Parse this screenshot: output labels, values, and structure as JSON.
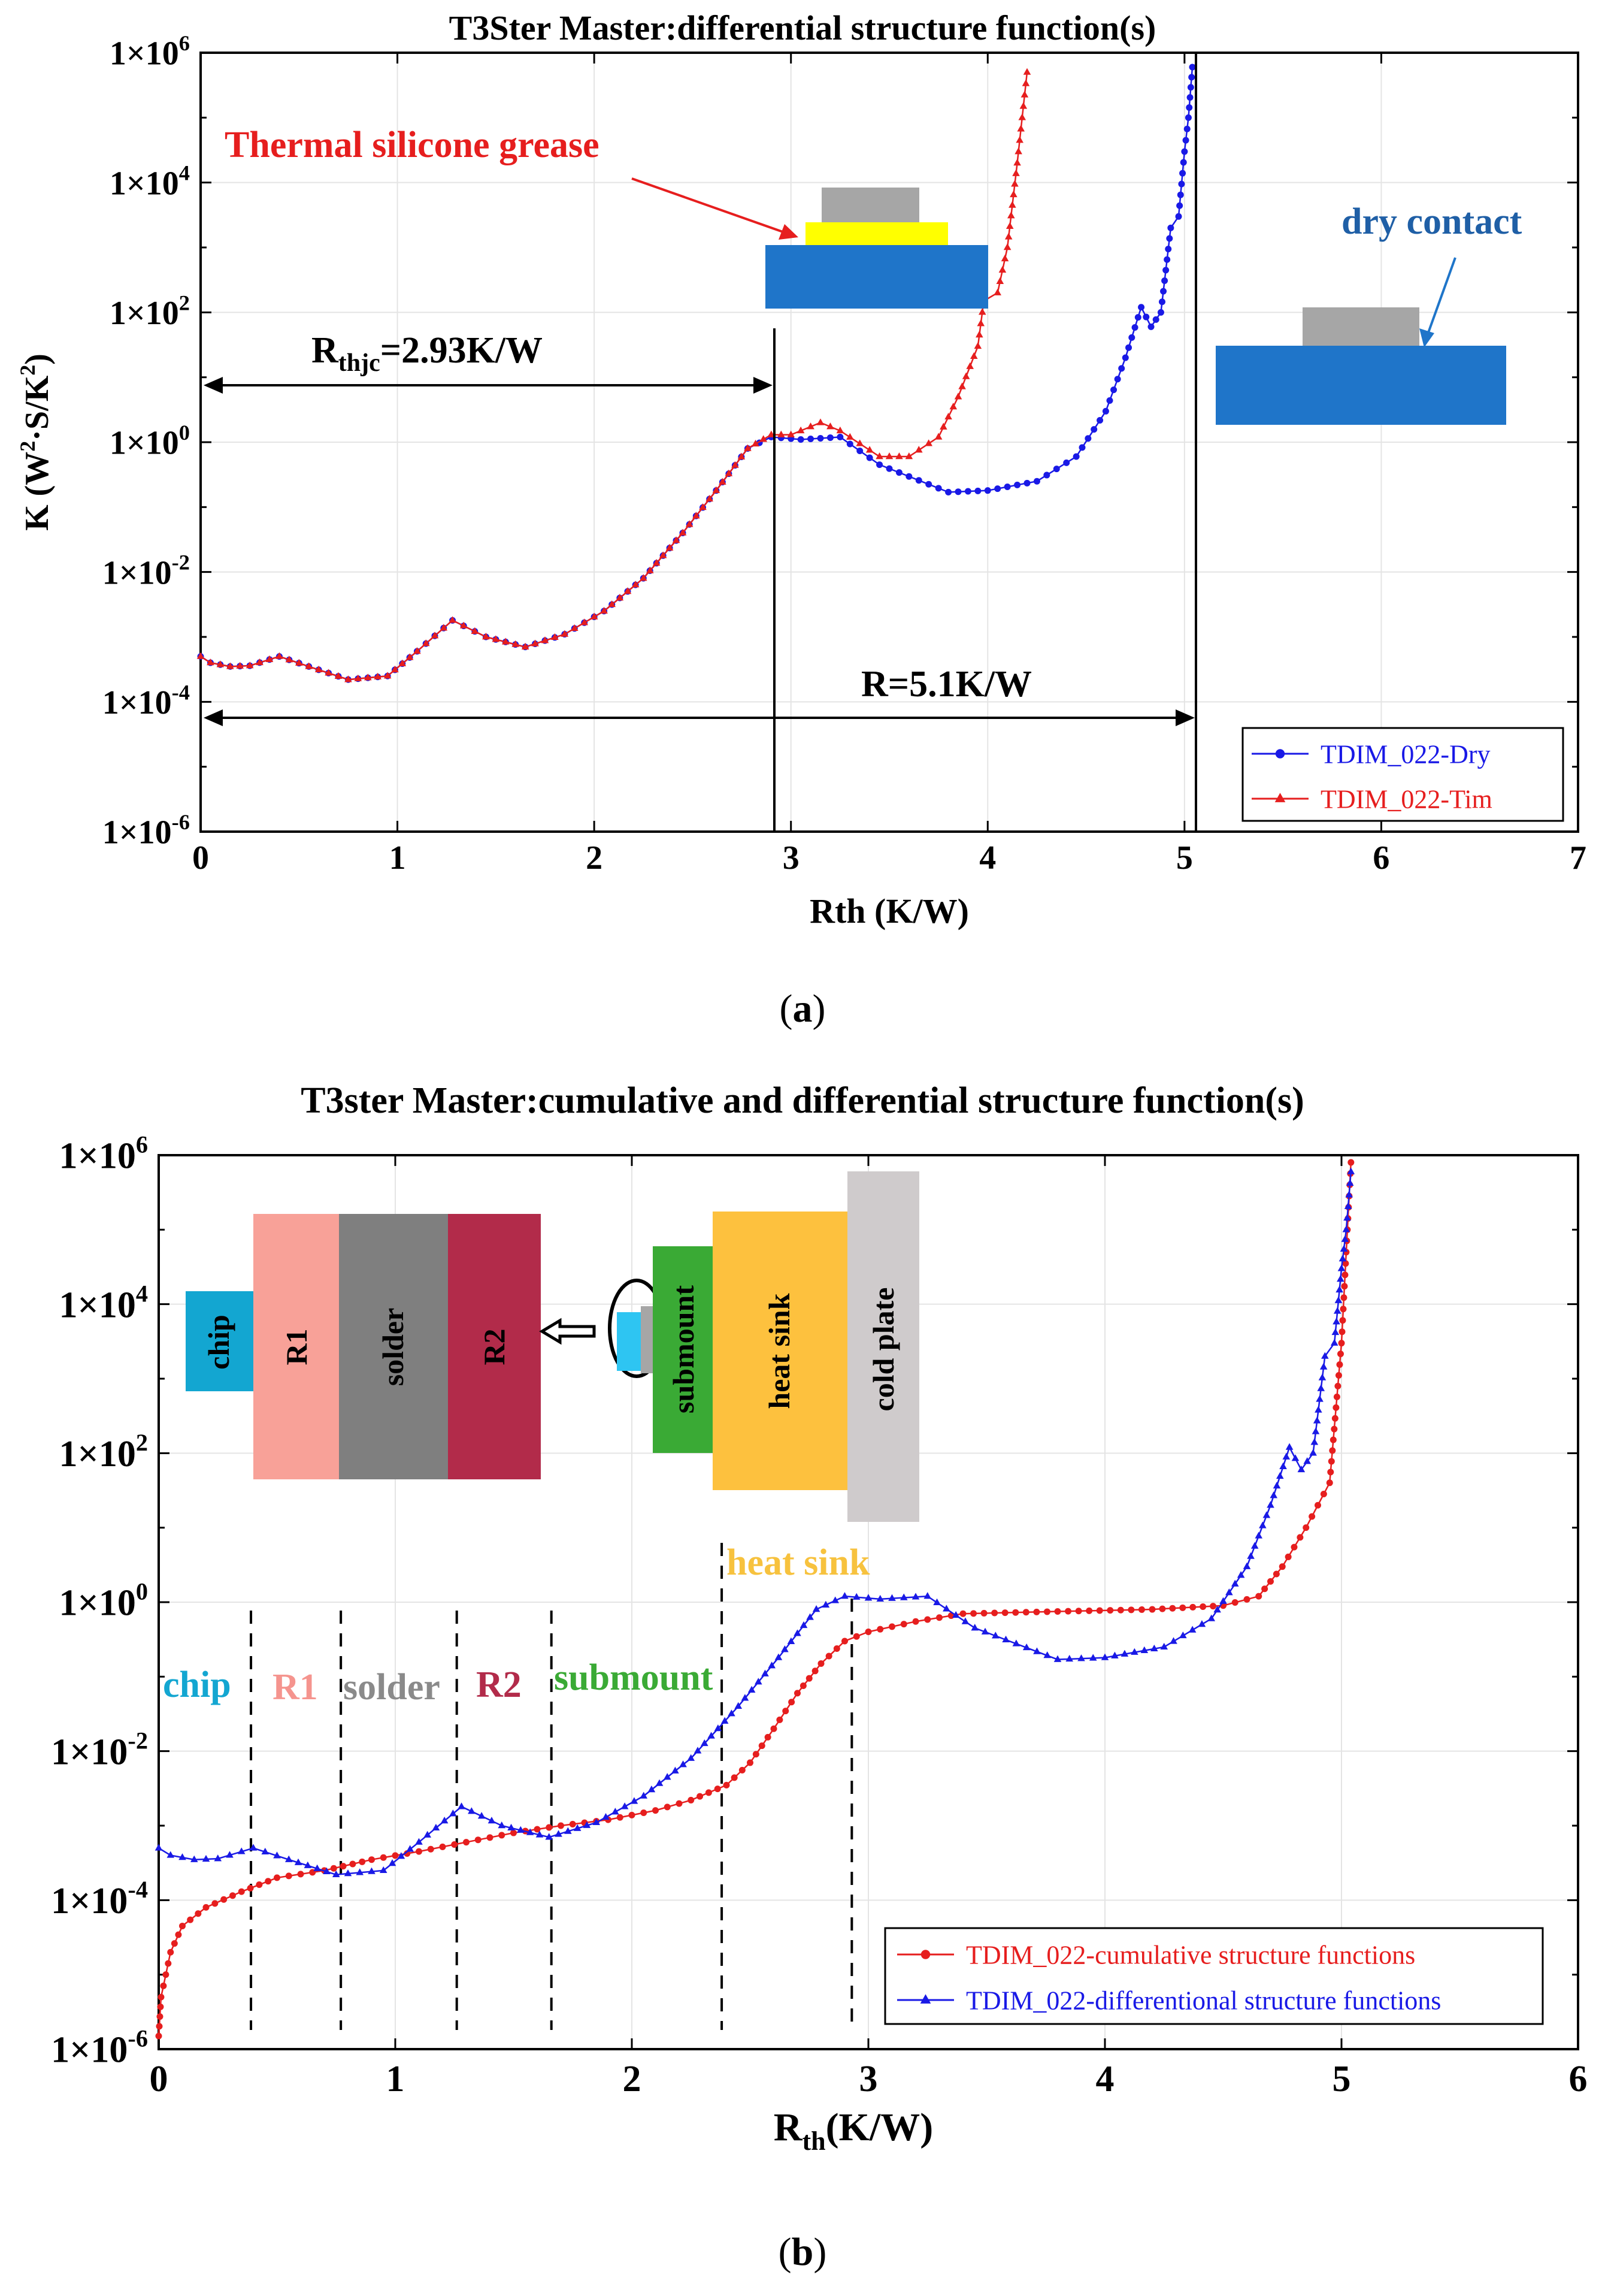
{
  "colors": {
    "blue": "#1919e6",
    "red": "#e61e1e",
    "blue_dark": "#1f5fa6",
    "dark": "#000000"
  },
  "chart_data": [
    {
      "type": "line",
      "title": "T3Ster Master:differential structure function(s)",
      "xlabel": "Rth (K/W)",
      "ylabel_main": "K (W",
      "ylabel_sup1": "2",
      "ylabel_mid": "·S/K",
      "ylabel_sup2": "2",
      "ylabel_end": ")",
      "xlim": [
        0,
        7
      ],
      "ylim": [
        1e-06,
        1000000.0
      ],
      "yscale": "log",
      "xticks": [
        0,
        1,
        2,
        3,
        4,
        5,
        6,
        7
      ],
      "xtick_labels": [
        "0",
        "1",
        "2",
        "3",
        "4",
        "5",
        "6",
        "7"
      ],
      "ytick_labels": [
        {
          "base": "1×10",
          "exp": "6"
        },
        {
          "base": "1×10",
          "exp": "4"
        },
        {
          "base": "1×10",
          "exp": "2"
        },
        {
          "base": "1×10",
          "exp": "0"
        },
        {
          "base": "1×10",
          "exp": "-2"
        },
        {
          "base": "1×10",
          "exp": "-4"
        },
        {
          "base": "1×10",
          "exp": "-6"
        }
      ],
      "legend_position": "bottom-right",
      "series": [
        {
          "name": "TDIM_022-Dry",
          "color": "#1919e6",
          "marker": "circle",
          "x": [
            0,
            0.05,
            0.15,
            0.25,
            0.4,
            0.55,
            0.75,
            0.95,
            1.1,
            1.28,
            1.45,
            1.65,
            1.85,
            2.05,
            2.25,
            2.45,
            2.62,
            2.78,
            2.9,
            3.05,
            3.25,
            3.45,
            3.8,
            4.0,
            4.25,
            4.45,
            4.6,
            4.7,
            4.78,
            4.83,
            4.88,
            4.93,
            4.97,
            5.0,
            5.02,
            5.04
          ],
          "y": [
            0.0005,
            0.0004,
            0.00035,
            0.00036,
            0.0005,
            0.00035,
            0.00022,
            0.00025,
            0.0006,
            0.0018,
            0.001,
            0.0007,
            0.0011,
            0.0025,
            0.008,
            0.04,
            0.18,
            0.8,
            1.2,
            1.1,
            1.2,
            0.45,
            0.17,
            0.18,
            0.25,
            0.6,
            3,
            20,
            120,
            60,
            100,
            2000,
            3000,
            30000,
            100000,
            600000
          ]
        },
        {
          "name": "TDIM_022-Tim",
          "color": "#e61e1e",
          "marker": "triangle",
          "x": [
            0,
            0.05,
            0.15,
            0.25,
            0.4,
            0.55,
            0.75,
            0.95,
            1.1,
            1.28,
            1.45,
            1.65,
            1.85,
            2.05,
            2.25,
            2.45,
            2.62,
            2.78,
            2.9,
            3.0,
            3.15,
            3.25,
            3.45,
            3.6,
            3.75,
            3.85,
            3.95,
            3.98,
            4.05,
            4.1,
            4.15,
            4.2
          ],
          "y": [
            0.0005,
            0.0004,
            0.00035,
            0.00036,
            0.0005,
            0.00035,
            0.00022,
            0.00025,
            0.0006,
            0.0018,
            0.001,
            0.0007,
            0.0011,
            0.0025,
            0.008,
            0.04,
            0.18,
            0.8,
            1.3,
            1.3,
            2,
            1.5,
            0.6,
            0.6,
            1.2,
            5,
            30,
            150,
            200,
            1000,
            20000,
            500000
          ]
        }
      ],
      "annotations": {
        "rthjc_main": "R",
        "rthjc_sub": "thjc",
        "rthjc_rest": "=2.93K/W",
        "r_total": "R=5.1K/W",
        "grease": "Thermal silicone grease",
        "dry": "dry contact"
      },
      "caption_open": "(",
      "caption_letter": "a",
      "caption_close": ")"
    },
    {
      "type": "line",
      "title": "T3ster Master:cumulative and differential structure function(s)",
      "xlabel_main": "R",
      "xlabel_sub": "th",
      "xlabel_rest": "(K/W)",
      "xlim": [
        0,
        6
      ],
      "ylim": [
        1e-06,
        1000000.0
      ],
      "yscale": "log",
      "xticks": [
        0,
        1,
        2,
        3,
        4,
        5,
        6
      ],
      "xtick_labels": [
        "0",
        "1",
        "2",
        "3",
        "4",
        "5",
        "6"
      ],
      "ytick_labels": [
        {
          "base": "1×10",
          "exp": "6"
        },
        {
          "base": "1×10",
          "exp": "4"
        },
        {
          "base": "1×10",
          "exp": "2"
        },
        {
          "base": "1×10",
          "exp": "0"
        },
        {
          "base": "1×10",
          "exp": "-2"
        },
        {
          "base": "1×10",
          "exp": "-4"
        },
        {
          "base": "1×10",
          "exp": "-6"
        }
      ],
      "legend_position": "bottom-right",
      "series": [
        {
          "name": "TDIM_022-cumulative structure functions",
          "color": "#e61e1e",
          "marker": "circle",
          "x": [
            0,
            0.01,
            0.05,
            0.1,
            0.2,
            0.35,
            0.5,
            0.7,
            0.9,
            1.1,
            1.3,
            1.5,
            1.7,
            1.9,
            2.1,
            2.25,
            2.4,
            2.5,
            2.6,
            2.7,
            2.8,
            2.9,
            3.0,
            3.2,
            3.4,
            3.8,
            4.2,
            4.5,
            4.65,
            4.75,
            4.85,
            4.9,
            4.95,
            5.0,
            5.02,
            5.04
          ],
          "y": [
            1.5e-06,
            5e-06,
            2e-05,
            4.5e-05,
            8e-05,
            0.00013,
            0.0002,
            0.00025,
            0.00035,
            0.00045,
            0.0006,
            0.0008,
            0.001,
            0.0012,
            0.0016,
            0.0022,
            0.0035,
            0.007,
            0.02,
            0.06,
            0.15,
            0.3,
            0.4,
            0.55,
            0.7,
            0.75,
            0.8,
            0.9,
            1.2,
            3,
            10,
            20,
            40,
            3000,
            50000,
            800000
          ]
        },
        {
          "name": "TDIM_022-differentional structure functions",
          "color": "#1919e6",
          "marker": "triangle",
          "x": [
            0,
            0.05,
            0.15,
            0.25,
            0.4,
            0.55,
            0.75,
            0.95,
            1.1,
            1.28,
            1.45,
            1.65,
            1.85,
            2.05,
            2.25,
            2.45,
            2.62,
            2.78,
            2.9,
            3.05,
            3.25,
            3.45,
            3.8,
            4.0,
            4.25,
            4.45,
            4.6,
            4.7,
            4.78,
            4.83,
            4.88,
            4.93,
            4.97,
            5.0,
            5.02,
            5.04
          ],
          "y": [
            0.0005,
            0.0004,
            0.00035,
            0.00036,
            0.0005,
            0.00035,
            0.00022,
            0.00025,
            0.0006,
            0.0018,
            0.001,
            0.0007,
            0.0011,
            0.0025,
            0.008,
            0.04,
            0.18,
            0.8,
            1.2,
            1.1,
            1.2,
            0.45,
            0.17,
            0.18,
            0.25,
            0.6,
            3,
            20,
            120,
            60,
            100,
            2000,
            3000,
            30000,
            100000,
            600000
          ]
        }
      ],
      "dashed_x": [
        0.39,
        0.77,
        1.26,
        1.66,
        2.38,
        2.93
      ],
      "region_labels": [
        {
          "text": "chip",
          "color": "#13a6d1"
        },
        {
          "text": "R1",
          "color": "#f5948e"
        },
        {
          "text": "solder",
          "color": "#8a8a8a"
        },
        {
          "text": "R2",
          "color": "#b22b4a"
        },
        {
          "text": "submount",
          "color": "#3aaa35"
        },
        {
          "text": "heat sink",
          "color": "#f7c23e"
        }
      ],
      "layers": {
        "chip": "chip",
        "r1": "R1",
        "solder": "solder",
        "r2": "R2",
        "submount": "submount",
        "heat_sink": "heat sink",
        "cold_plate": "cold plate"
      },
      "caption_open": "(",
      "caption_letter": "b",
      "caption_close": ")"
    }
  ]
}
